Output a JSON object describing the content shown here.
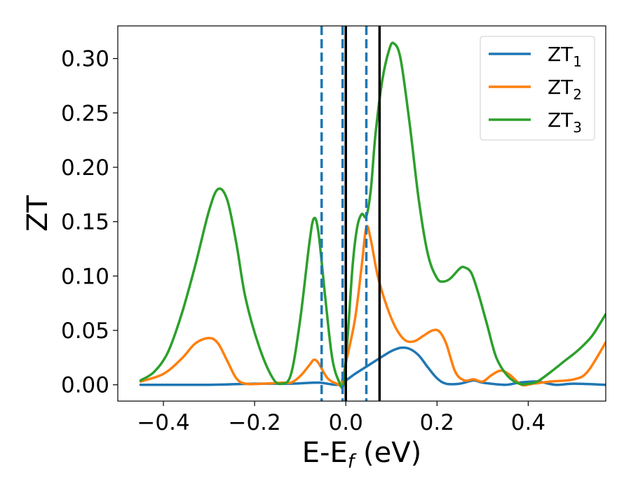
{
  "chart_data": {
    "type": "line",
    "xlabel": "E-E_f (eV)",
    "xlabel_main": "E-E",
    "xlabel_sub": "f",
    "xlabel_tail": " (eV)",
    "ylabel": "ZT",
    "xlim": [
      -0.5,
      0.57
    ],
    "ylim": [
      -0.015,
      0.33
    ],
    "xticks": [
      -0.4,
      -0.2,
      0.0,
      0.2,
      0.4
    ],
    "xtick_labels": [
      "−0.4",
      "−0.2",
      "0.0",
      "0.2",
      "0.4"
    ],
    "yticks": [
      0.0,
      0.05,
      0.1,
      0.15,
      0.2,
      0.25,
      0.3
    ],
    "ytick_labels": [
      "0.00",
      "0.05",
      "0.10",
      "0.15",
      "0.20",
      "0.25",
      "0.30"
    ],
    "grid": false,
    "legend_position": "top-right",
    "series": [
      {
        "name": "ZT",
        "subscript": "1",
        "color": "#1f77b4",
        "points": [
          [
            -0.45,
            0.0
          ],
          [
            -0.3,
            0.0
          ],
          [
            -0.2,
            0.001
          ],
          [
            -0.12,
            0.001
          ],
          [
            -0.06,
            0.002
          ],
          [
            -0.02,
            0.0
          ],
          [
            0.0,
            0.004
          ],
          [
            0.02,
            0.01
          ],
          [
            0.05,
            0.018
          ],
          [
            0.08,
            0.026
          ],
          [
            0.1,
            0.031
          ],
          [
            0.12,
            0.034
          ],
          [
            0.14,
            0.033
          ],
          [
            0.16,
            0.027
          ],
          [
            0.18,
            0.016
          ],
          [
            0.2,
            0.006
          ],
          [
            0.22,
            0.001
          ],
          [
            0.25,
            0.001
          ],
          [
            0.28,
            0.004
          ],
          [
            0.3,
            0.002
          ],
          [
            0.35,
            0.0
          ],
          [
            0.38,
            0.002
          ],
          [
            0.42,
            0.003
          ],
          [
            0.46,
            0.0
          ],
          [
            0.5,
            0.001
          ],
          [
            0.57,
            0.0
          ]
        ]
      },
      {
        "name": "ZT",
        "subscript": "2",
        "color": "#ff7f0e",
        "points": [
          [
            -0.45,
            0.003
          ],
          [
            -0.4,
            0.01
          ],
          [
            -0.36,
            0.024
          ],
          [
            -0.33,
            0.038
          ],
          [
            -0.3,
            0.043
          ],
          [
            -0.28,
            0.038
          ],
          [
            -0.26,
            0.022
          ],
          [
            -0.24,
            0.006
          ],
          [
            -0.22,
            0.001
          ],
          [
            -0.18,
            0.001
          ],
          [
            -0.14,
            0.002
          ],
          [
            -0.12,
            0.002
          ],
          [
            -0.1,
            0.008
          ],
          [
            -0.08,
            0.018
          ],
          [
            -0.07,
            0.023
          ],
          [
            -0.06,
            0.02
          ],
          [
            -0.04,
            0.006
          ],
          [
            -0.02,
            0.001
          ],
          [
            -0.01,
            0.001
          ],
          [
            0.0,
            0.02
          ],
          [
            0.02,
            0.06
          ],
          [
            0.035,
            0.11
          ],
          [
            0.045,
            0.145
          ],
          [
            0.055,
            0.133
          ],
          [
            0.07,
            0.1
          ],
          [
            0.09,
            0.072
          ],
          [
            0.11,
            0.052
          ],
          [
            0.13,
            0.041
          ],
          [
            0.15,
            0.04
          ],
          [
            0.17,
            0.045
          ],
          [
            0.19,
            0.05
          ],
          [
            0.205,
            0.049
          ],
          [
            0.22,
            0.038
          ],
          [
            0.24,
            0.012
          ],
          [
            0.26,
            0.004
          ],
          [
            0.28,
            0.005
          ],
          [
            0.3,
            0.003
          ],
          [
            0.32,
            0.009
          ],
          [
            0.34,
            0.013
          ],
          [
            0.36,
            0.009
          ],
          [
            0.385,
            0.0
          ],
          [
            0.41,
            0.001
          ],
          [
            0.45,
            0.003
          ],
          [
            0.5,
            0.005
          ],
          [
            0.53,
            0.012
          ],
          [
            0.57,
            0.039
          ]
        ]
      },
      {
        "name": "ZT",
        "subscript": "3",
        "color": "#2ca02c",
        "points": [
          [
            -0.45,
            0.004
          ],
          [
            -0.42,
            0.012
          ],
          [
            -0.39,
            0.03
          ],
          [
            -0.36,
            0.065
          ],
          [
            -0.33,
            0.11
          ],
          [
            -0.3,
            0.16
          ],
          [
            -0.28,
            0.18
          ],
          [
            -0.26,
            0.17
          ],
          [
            -0.24,
            0.13
          ],
          [
            -0.22,
            0.08
          ],
          [
            -0.19,
            0.035
          ],
          [
            -0.16,
            0.006
          ],
          [
            -0.14,
            0.001
          ],
          [
            -0.12,
            0.01
          ],
          [
            -0.1,
            0.06
          ],
          [
            -0.08,
            0.13
          ],
          [
            -0.07,
            0.153
          ],
          [
            -0.06,
            0.14
          ],
          [
            -0.045,
            0.08
          ],
          [
            -0.03,
            0.025
          ],
          [
            -0.015,
            0.003
          ],
          [
            -0.005,
            0.001
          ],
          [
            0.005,
            0.05
          ],
          [
            0.015,
            0.11
          ],
          [
            0.025,
            0.145
          ],
          [
            0.035,
            0.157
          ],
          [
            0.045,
            0.155
          ],
          [
            0.055,
            0.18
          ],
          [
            0.065,
            0.23
          ],
          [
            0.08,
            0.28
          ],
          [
            0.095,
            0.308
          ],
          [
            0.105,
            0.314
          ],
          [
            0.12,
            0.3
          ],
          [
            0.14,
            0.24
          ],
          [
            0.16,
            0.17
          ],
          [
            0.18,
            0.12
          ],
          [
            0.2,
            0.098
          ],
          [
            0.215,
            0.095
          ],
          [
            0.23,
            0.098
          ],
          [
            0.25,
            0.107
          ],
          [
            0.26,
            0.108
          ],
          [
            0.275,
            0.103
          ],
          [
            0.29,
            0.085
          ],
          [
            0.31,
            0.055
          ],
          [
            0.33,
            0.025
          ],
          [
            0.355,
            0.008
          ],
          [
            0.38,
            0.001
          ],
          [
            0.4,
            0.001
          ],
          [
            0.42,
            0.003
          ],
          [
            0.45,
            0.012
          ],
          [
            0.48,
            0.022
          ],
          [
            0.51,
            0.032
          ],
          [
            0.54,
            0.045
          ],
          [
            0.57,
            0.065
          ]
        ]
      }
    ],
    "vlines": [
      {
        "x": -0.053,
        "style": "dashed",
        "color": "#1f77b4"
      },
      {
        "x": -0.007,
        "style": "dashed",
        "color": "#1f77b4"
      },
      {
        "x": 0.045,
        "style": "dashed",
        "color": "#1f77b4"
      },
      {
        "x": 0.0,
        "style": "solid",
        "color": "#000000"
      },
      {
        "x": 0.074,
        "style": "solid",
        "color": "#000000"
      }
    ]
  }
}
